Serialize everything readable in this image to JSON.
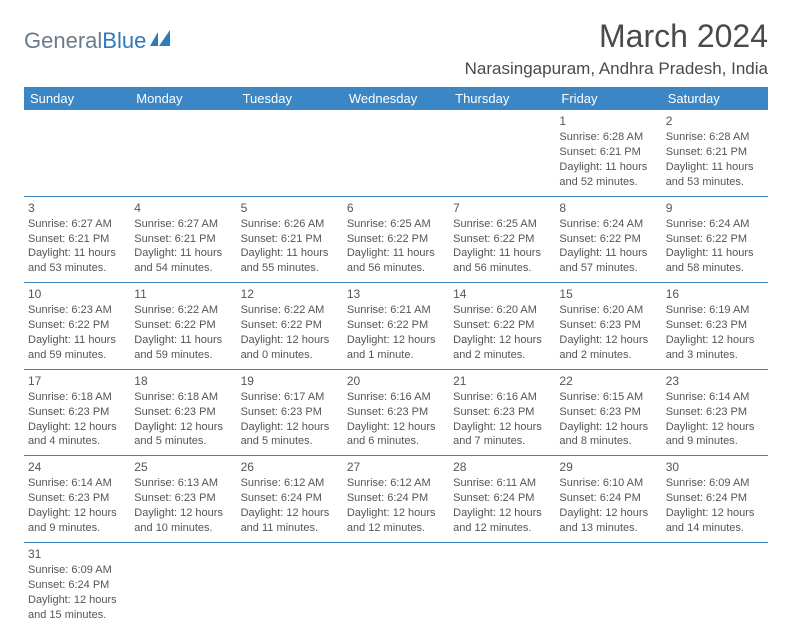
{
  "logo": {
    "part1": "General",
    "part2": "Blue"
  },
  "title": "March 2024",
  "location": "Narasingapuram, Andhra Pradesh, India",
  "headerBg": "#3b86c4",
  "days": [
    "Sunday",
    "Monday",
    "Tuesday",
    "Wednesday",
    "Thursday",
    "Friday",
    "Saturday"
  ],
  "weeks": [
    [
      null,
      null,
      null,
      null,
      null,
      {
        "n": "1",
        "sr": "Sunrise: 6:28 AM",
        "ss": "Sunset: 6:21 PM",
        "d1": "Daylight: 11 hours",
        "d2": "and 52 minutes."
      },
      {
        "n": "2",
        "sr": "Sunrise: 6:28 AM",
        "ss": "Sunset: 6:21 PM",
        "d1": "Daylight: 11 hours",
        "d2": "and 53 minutes."
      }
    ],
    [
      {
        "n": "3",
        "sr": "Sunrise: 6:27 AM",
        "ss": "Sunset: 6:21 PM",
        "d1": "Daylight: 11 hours",
        "d2": "and 53 minutes."
      },
      {
        "n": "4",
        "sr": "Sunrise: 6:27 AM",
        "ss": "Sunset: 6:21 PM",
        "d1": "Daylight: 11 hours",
        "d2": "and 54 minutes."
      },
      {
        "n": "5",
        "sr": "Sunrise: 6:26 AM",
        "ss": "Sunset: 6:21 PM",
        "d1": "Daylight: 11 hours",
        "d2": "and 55 minutes."
      },
      {
        "n": "6",
        "sr": "Sunrise: 6:25 AM",
        "ss": "Sunset: 6:22 PM",
        "d1": "Daylight: 11 hours",
        "d2": "and 56 minutes."
      },
      {
        "n": "7",
        "sr": "Sunrise: 6:25 AM",
        "ss": "Sunset: 6:22 PM",
        "d1": "Daylight: 11 hours",
        "d2": "and 56 minutes."
      },
      {
        "n": "8",
        "sr": "Sunrise: 6:24 AM",
        "ss": "Sunset: 6:22 PM",
        "d1": "Daylight: 11 hours",
        "d2": "and 57 minutes."
      },
      {
        "n": "9",
        "sr": "Sunrise: 6:24 AM",
        "ss": "Sunset: 6:22 PM",
        "d1": "Daylight: 11 hours",
        "d2": "and 58 minutes."
      }
    ],
    [
      {
        "n": "10",
        "sr": "Sunrise: 6:23 AM",
        "ss": "Sunset: 6:22 PM",
        "d1": "Daylight: 11 hours",
        "d2": "and 59 minutes."
      },
      {
        "n": "11",
        "sr": "Sunrise: 6:22 AM",
        "ss": "Sunset: 6:22 PM",
        "d1": "Daylight: 11 hours",
        "d2": "and 59 minutes."
      },
      {
        "n": "12",
        "sr": "Sunrise: 6:22 AM",
        "ss": "Sunset: 6:22 PM",
        "d1": "Daylight: 12 hours",
        "d2": "and 0 minutes."
      },
      {
        "n": "13",
        "sr": "Sunrise: 6:21 AM",
        "ss": "Sunset: 6:22 PM",
        "d1": "Daylight: 12 hours",
        "d2": "and 1 minute."
      },
      {
        "n": "14",
        "sr": "Sunrise: 6:20 AM",
        "ss": "Sunset: 6:22 PM",
        "d1": "Daylight: 12 hours",
        "d2": "and 2 minutes."
      },
      {
        "n": "15",
        "sr": "Sunrise: 6:20 AM",
        "ss": "Sunset: 6:23 PM",
        "d1": "Daylight: 12 hours",
        "d2": "and 2 minutes."
      },
      {
        "n": "16",
        "sr": "Sunrise: 6:19 AM",
        "ss": "Sunset: 6:23 PM",
        "d1": "Daylight: 12 hours",
        "d2": "and 3 minutes."
      }
    ],
    [
      {
        "n": "17",
        "sr": "Sunrise: 6:18 AM",
        "ss": "Sunset: 6:23 PM",
        "d1": "Daylight: 12 hours",
        "d2": "and 4 minutes."
      },
      {
        "n": "18",
        "sr": "Sunrise: 6:18 AM",
        "ss": "Sunset: 6:23 PM",
        "d1": "Daylight: 12 hours",
        "d2": "and 5 minutes."
      },
      {
        "n": "19",
        "sr": "Sunrise: 6:17 AM",
        "ss": "Sunset: 6:23 PM",
        "d1": "Daylight: 12 hours",
        "d2": "and 5 minutes."
      },
      {
        "n": "20",
        "sr": "Sunrise: 6:16 AM",
        "ss": "Sunset: 6:23 PM",
        "d1": "Daylight: 12 hours",
        "d2": "and 6 minutes."
      },
      {
        "n": "21",
        "sr": "Sunrise: 6:16 AM",
        "ss": "Sunset: 6:23 PM",
        "d1": "Daylight: 12 hours",
        "d2": "and 7 minutes."
      },
      {
        "n": "22",
        "sr": "Sunrise: 6:15 AM",
        "ss": "Sunset: 6:23 PM",
        "d1": "Daylight: 12 hours",
        "d2": "and 8 minutes."
      },
      {
        "n": "23",
        "sr": "Sunrise: 6:14 AM",
        "ss": "Sunset: 6:23 PM",
        "d1": "Daylight: 12 hours",
        "d2": "and 9 minutes."
      }
    ],
    [
      {
        "n": "24",
        "sr": "Sunrise: 6:14 AM",
        "ss": "Sunset: 6:23 PM",
        "d1": "Daylight: 12 hours",
        "d2": "and 9 minutes."
      },
      {
        "n": "25",
        "sr": "Sunrise: 6:13 AM",
        "ss": "Sunset: 6:23 PM",
        "d1": "Daylight: 12 hours",
        "d2": "and 10 minutes."
      },
      {
        "n": "26",
        "sr": "Sunrise: 6:12 AM",
        "ss": "Sunset: 6:24 PM",
        "d1": "Daylight: 12 hours",
        "d2": "and 11 minutes."
      },
      {
        "n": "27",
        "sr": "Sunrise: 6:12 AM",
        "ss": "Sunset: 6:24 PM",
        "d1": "Daylight: 12 hours",
        "d2": "and 12 minutes."
      },
      {
        "n": "28",
        "sr": "Sunrise: 6:11 AM",
        "ss": "Sunset: 6:24 PM",
        "d1": "Daylight: 12 hours",
        "d2": "and 12 minutes."
      },
      {
        "n": "29",
        "sr": "Sunrise: 6:10 AM",
        "ss": "Sunset: 6:24 PM",
        "d1": "Daylight: 12 hours",
        "d2": "and 13 minutes."
      },
      {
        "n": "30",
        "sr": "Sunrise: 6:09 AM",
        "ss": "Sunset: 6:24 PM",
        "d1": "Daylight: 12 hours",
        "d2": "and 14 minutes."
      }
    ],
    [
      {
        "n": "31",
        "sr": "Sunrise: 6:09 AM",
        "ss": "Sunset: 6:24 PM",
        "d1": "Daylight: 12 hours",
        "d2": "and 15 minutes."
      },
      null,
      null,
      null,
      null,
      null,
      null
    ]
  ]
}
